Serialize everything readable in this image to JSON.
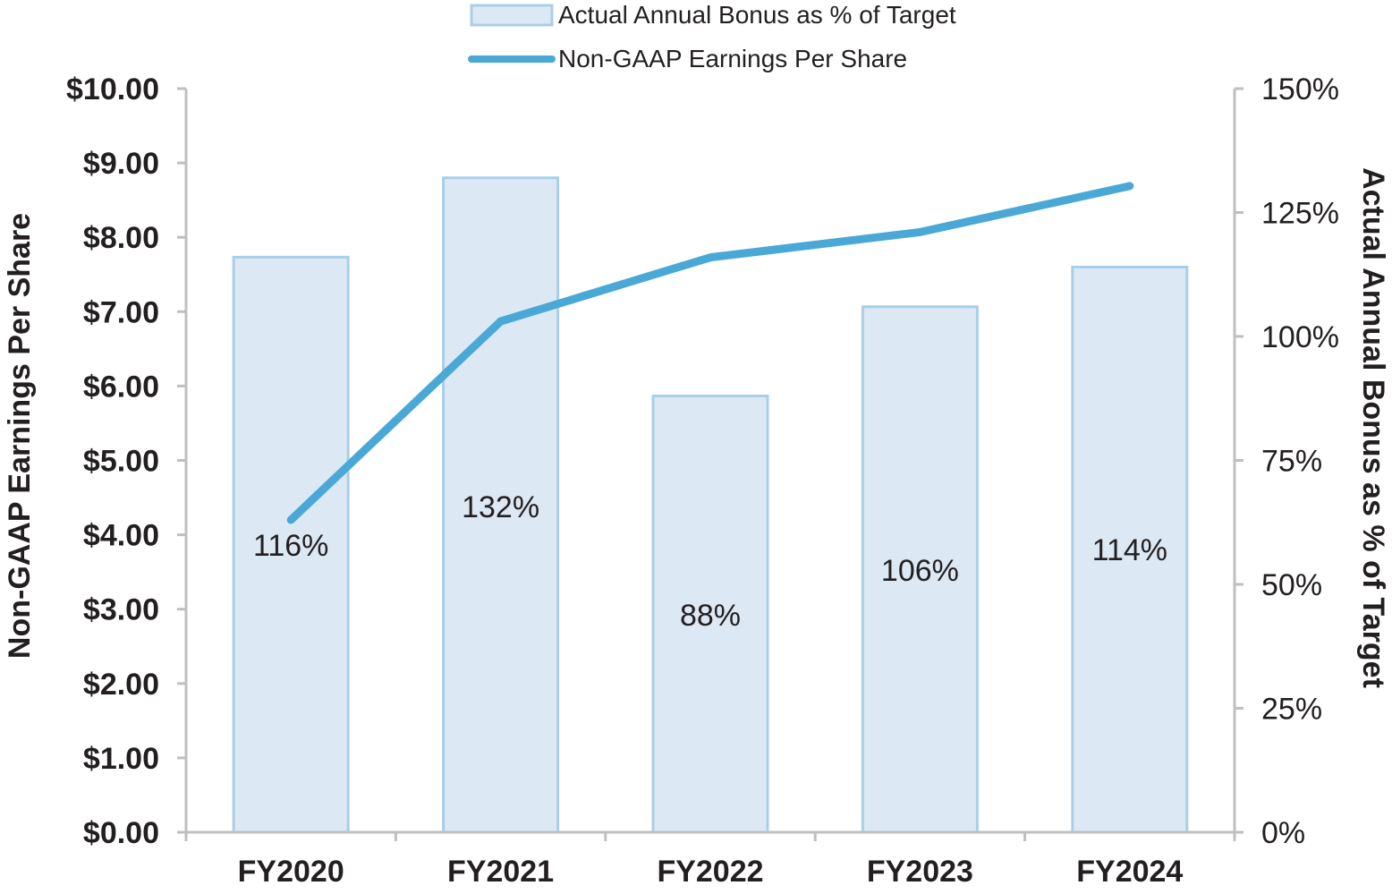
{
  "chart_data": {
    "type": "bar",
    "categories": [
      "FY2020",
      "FY2021",
      "FY2022",
      "FY2023",
      "FY2024"
    ],
    "series": [
      {
        "name": "Actual Annual Bonus as % of Target",
        "kind": "bar",
        "axis": "right",
        "values": [
          116,
          132,
          88,
          106,
          114
        ],
        "labels": [
          "116%",
          "132%",
          "88%",
          "106%",
          "114%"
        ]
      },
      {
        "name": "Non-GAAP Earnings Per Share",
        "kind": "line",
        "axis": "left",
        "values": [
          4.2,
          6.87,
          7.73,
          8.07,
          8.69
        ]
      }
    ],
    "left_axis": {
      "label": "Non-GAAP Earnings Per Share",
      "ylim": [
        0,
        10
      ],
      "ticks": [
        "$0.00",
        "$1.00",
        "$2.00",
        "$3.00",
        "$4.00",
        "$5.00",
        "$6.00",
        "$7.00",
        "$8.00",
        "$9.00",
        "$10.00"
      ]
    },
    "right_axis": {
      "label": "Actual Annual Bonus as % of Target",
      "ylim": [
        0,
        150
      ],
      "ticks": [
        "0%",
        "25%",
        "50%",
        "75%",
        "100%",
        "125%",
        "150%"
      ]
    },
    "legend": {
      "position": "top-center",
      "bar_label": "Actual Annual Bonus as % of Target",
      "line_label": "Non-GAAP Earnings Per Share"
    },
    "colors": {
      "bar_fill": "#dce9f5",
      "bar_stroke": "#a9cfe8",
      "line": "#4aa8d6",
      "axis": "#bfbfbf"
    },
    "grid": false
  }
}
